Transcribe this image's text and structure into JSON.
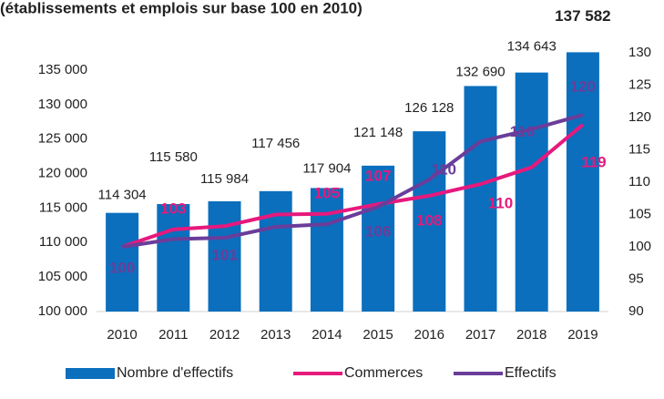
{
  "chart_data": {
    "type": "bar_line",
    "title": "(établissements et emplois sur base 100 en 2010)",
    "categories": [
      "2010",
      "2011",
      "2012",
      "2013",
      "2014",
      "2015",
      "2016",
      "2017",
      "2018",
      "2019"
    ],
    "series": [
      {
        "name": "Nombre d'effectifs",
        "type": "bar",
        "color": "#0b6fbd",
        "values": [
          114304,
          115580,
          115984,
          117456,
          117904,
          121148,
          126128,
          132690,
          134643,
          137582
        ],
        "value_labels": [
          "114 304",
          "115 580",
          "115 984",
          "117 456",
          "117 904",
          "121 148",
          "126 128",
          "132 690",
          "134 643",
          "137 582"
        ]
      },
      {
        "name": "Commerces",
        "type": "line",
        "axis": "y2",
        "color": "#e6197d",
        "values": [
          100,
          102.7,
          103.2,
          105,
          105.1,
          106.6,
          107.9,
          109.7,
          112.3,
          118.9
        ],
        "value_labels": [
          null,
          "103",
          null,
          null,
          "105",
          "107",
          "108",
          "110",
          null,
          "119"
        ]
      },
      {
        "name": "Effectifs",
        "type": "line",
        "axis": "y2",
        "color": "#6a3d9a",
        "values": [
          100,
          101.2,
          101.4,
          103.1,
          103.5,
          106.2,
          110.4,
          116.3,
          118.2,
          120.4
        ],
        "value_labels": [
          "100",
          null,
          "101",
          null,
          null,
          "106",
          "110",
          "116",
          null,
          "120"
        ]
      }
    ],
    "ylim": [
      100000,
      137500
    ],
    "yticks": [
      {
        "value": 100000,
        "label": "100 000"
      },
      {
        "value": 105000,
        "label": "105 000"
      },
      {
        "value": 110000,
        "label": "110 000"
      },
      {
        "value": 115000,
        "label": "115 000"
      },
      {
        "value": 120000,
        "label": "120 000"
      },
      {
        "value": 125000,
        "label": "125 000"
      },
      {
        "value": 130000,
        "label": "130 000"
      },
      {
        "value": 135000,
        "label": "135 000"
      }
    ],
    "y2lim": [
      90,
      130
    ],
    "y2ticks": [
      90,
      95,
      100,
      105,
      110,
      115,
      120,
      125,
      130
    ],
    "legend": "bottom"
  }
}
